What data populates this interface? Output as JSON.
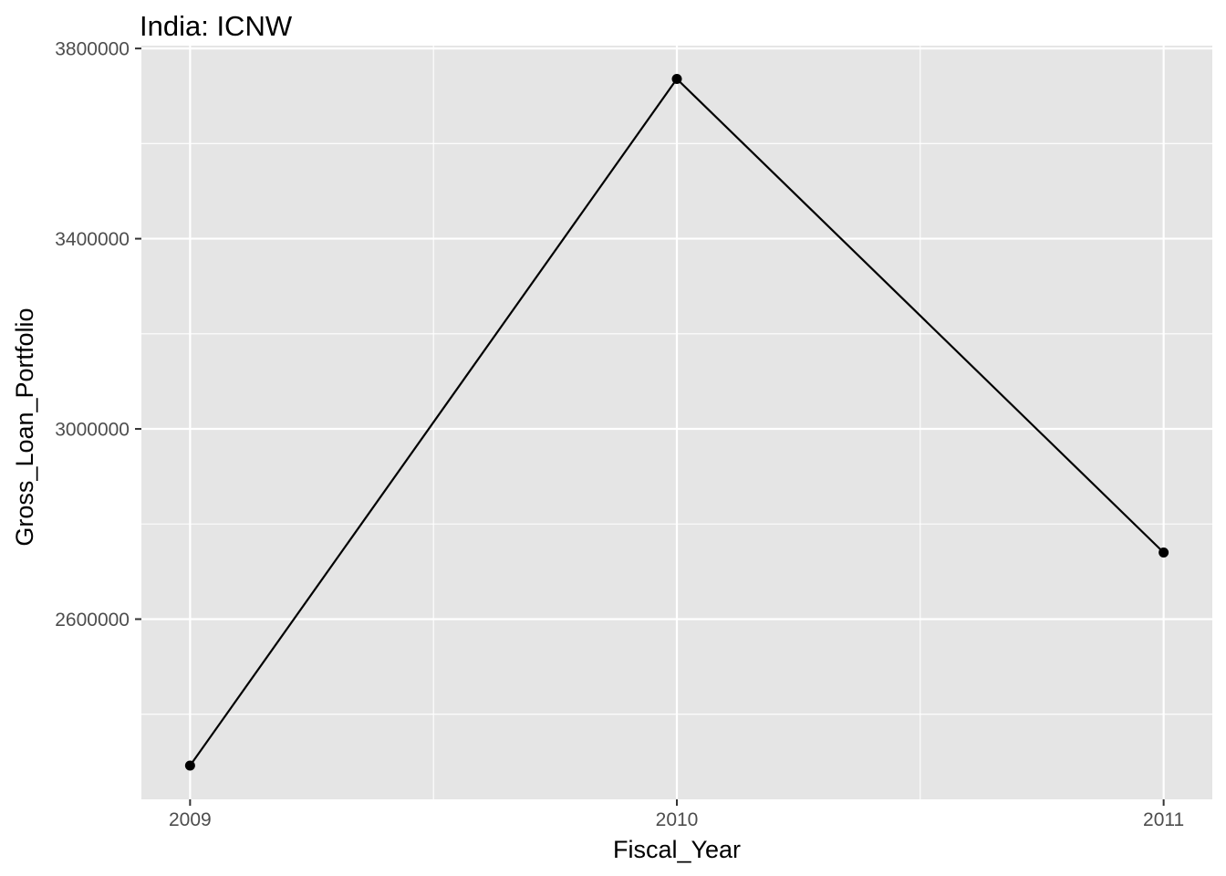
{
  "chart_data": {
    "type": "line",
    "title": "India:  ICNW",
    "xlabel": "Fiscal_Year",
    "ylabel": "Gross_Loan_Portfolio",
    "x": [
      2009,
      2010,
      2011
    ],
    "series": [
      {
        "values": [
          2292000,
          3736000,
          2740000
        ]
      }
    ],
    "x_ticks": [
      2009,
      2010,
      2011
    ],
    "x_tick_labels": [
      "2009",
      "2010",
      "2011"
    ],
    "y_ticks": [
      2600000,
      3000000,
      3400000,
      3800000
    ],
    "y_tick_labels": [
      "2600000",
      "3000000",
      "3400000",
      "3800000"
    ],
    "xlim": [
      2008.9,
      2011.1
    ],
    "ylim": [
      2221000,
      3806000
    ],
    "grid": true,
    "legend": "none",
    "colors": {
      "panel_background": "#e5e5e5",
      "grid": "#ffffff",
      "line": "#000000",
      "point": "#000000",
      "tick_text": "#4d4d4d",
      "axis_ticks": "#333333"
    }
  }
}
